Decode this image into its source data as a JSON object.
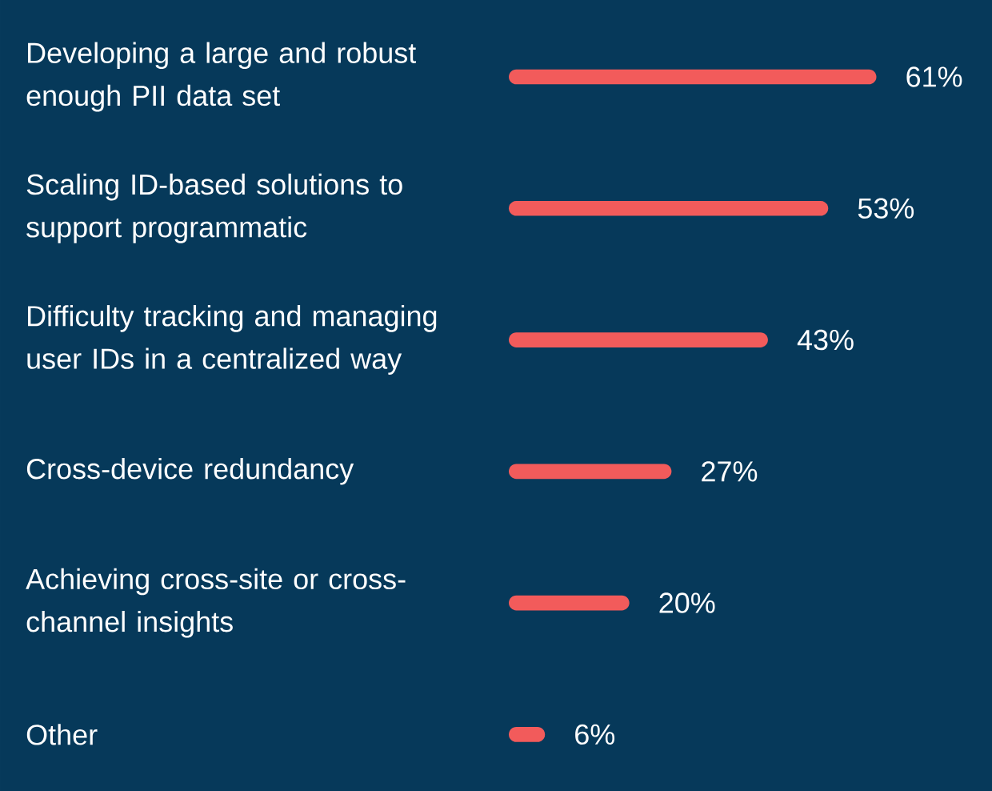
{
  "chart_data": {
    "type": "bar",
    "orientation": "horizontal",
    "categories": [
      "Developing a large and robust enough PII data set",
      "Scaling ID-based solutions to support programmatic",
      "Difficulty tracking and managing user IDs in a centralized way",
      "Cross-device redundancy",
      "Achieving cross-site or cross-channel insights",
      "Other"
    ],
    "values": [
      61,
      53,
      43,
      27,
      20,
      6
    ],
    "value_labels": [
      "61%",
      "53%",
      "43%",
      "27%",
      "20%",
      "6%"
    ],
    "color": "#f25b5b"
  }
}
